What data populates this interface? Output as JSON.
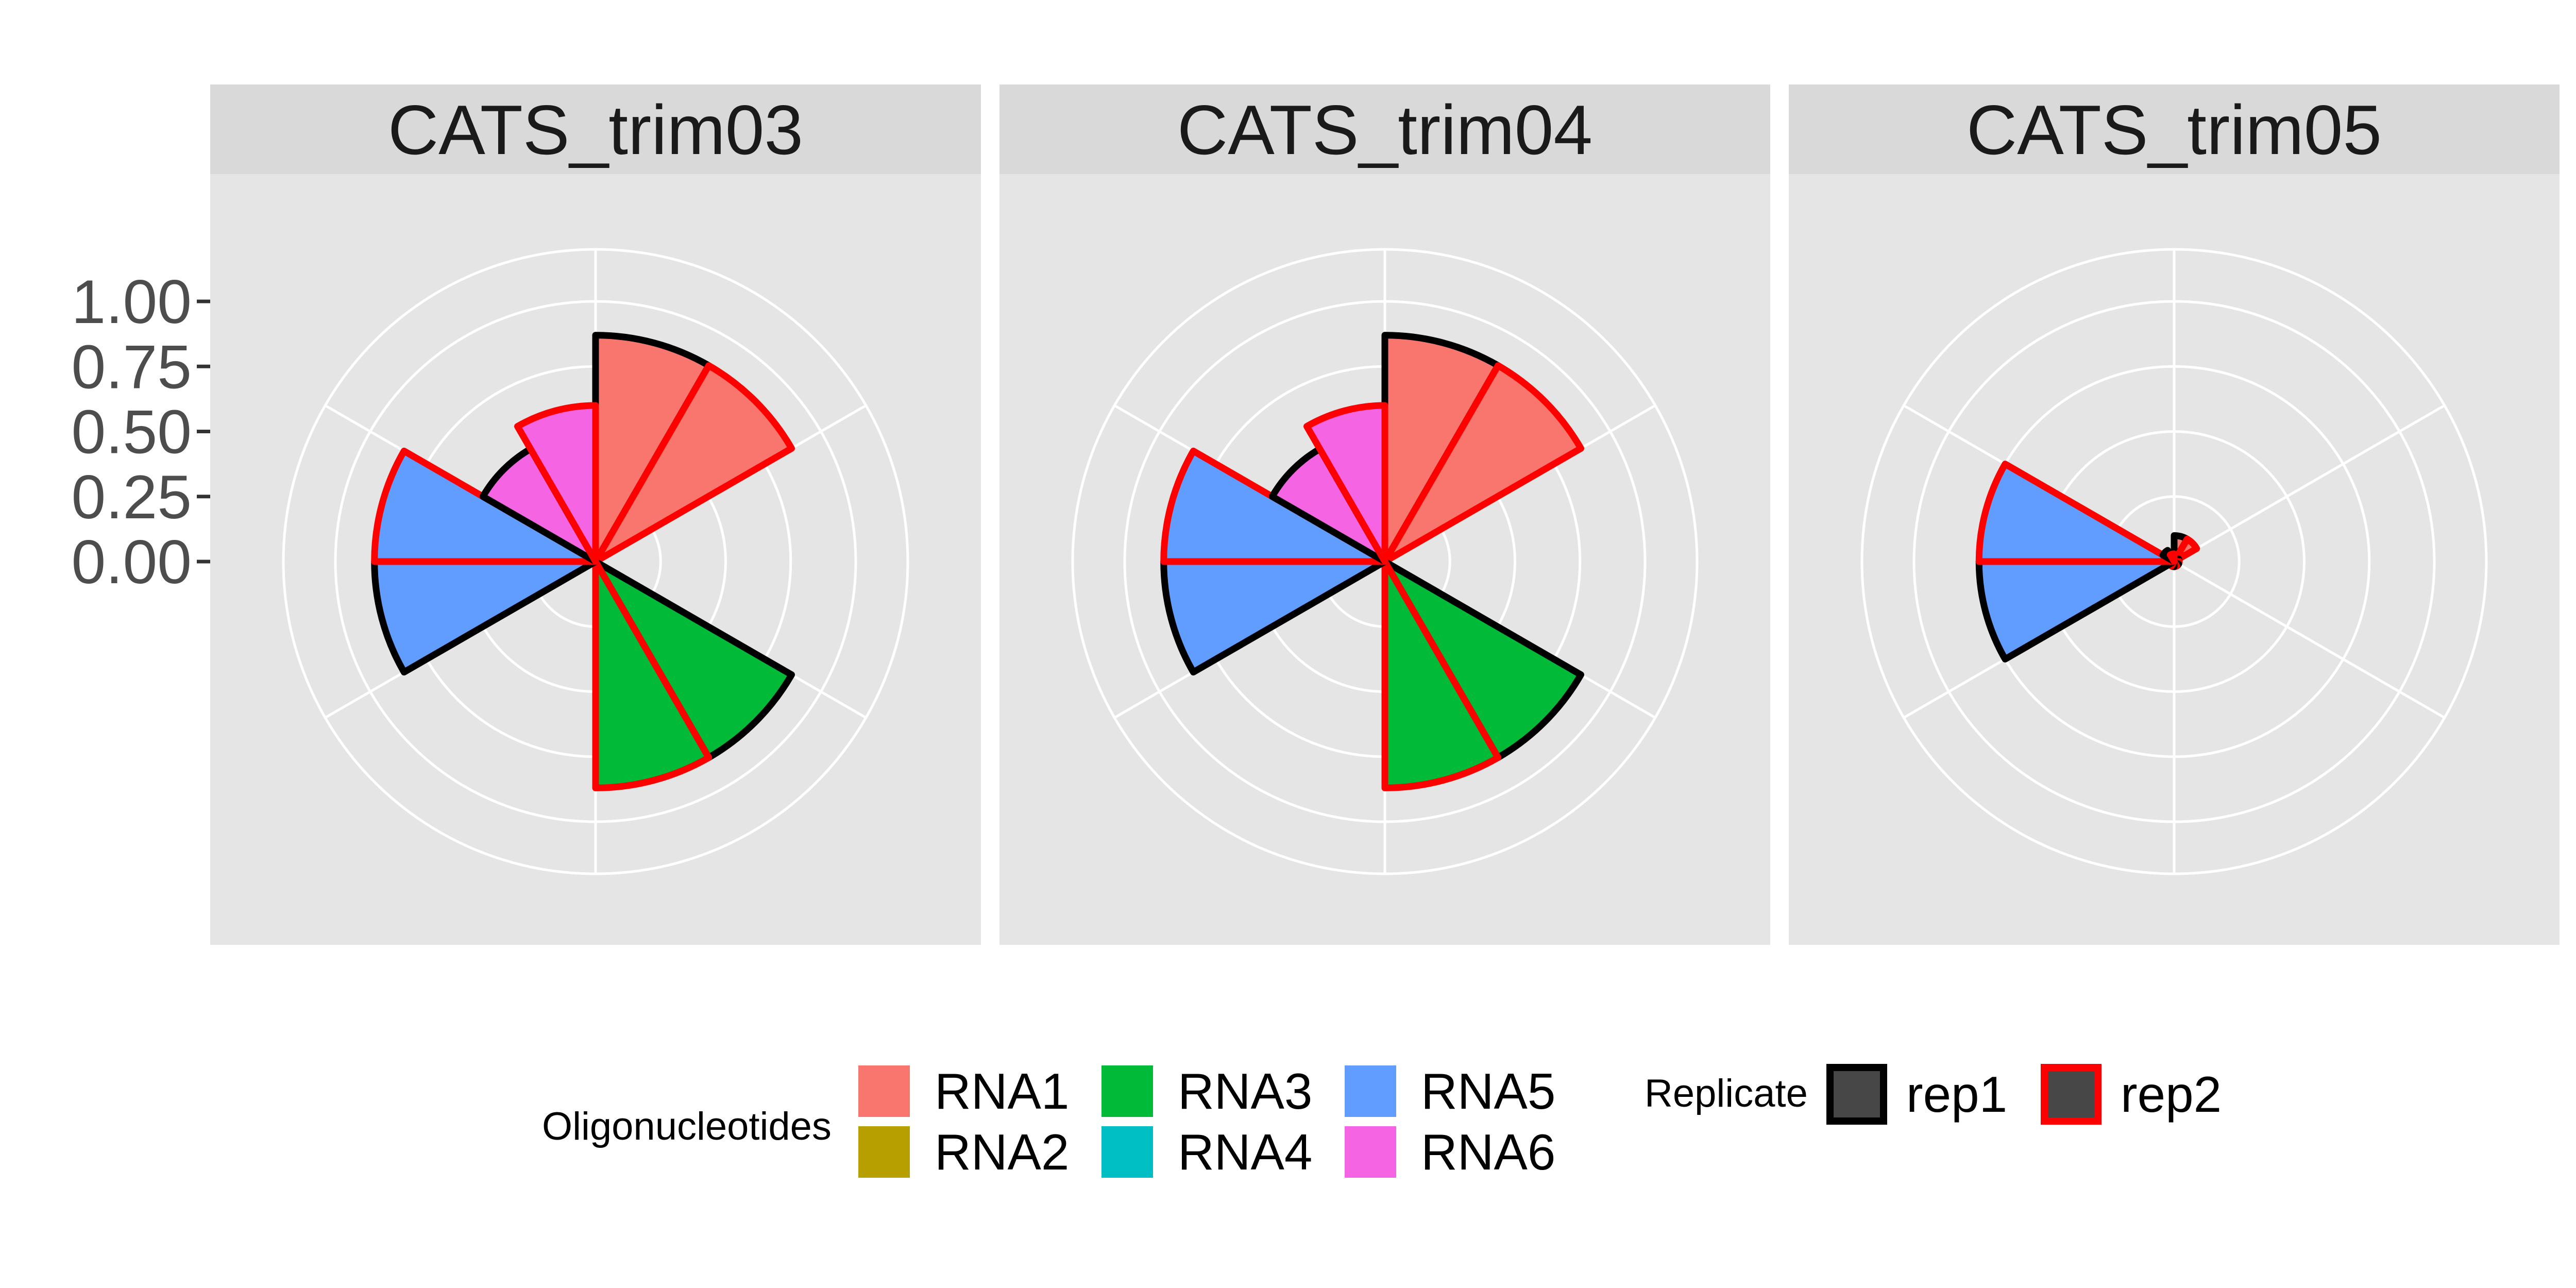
{
  "chart_data": {
    "type": "polar-bar",
    "facets": [
      {
        "name": "CATS_trim03",
        "bars": [
          {
            "oligo": "RNA1",
            "replicate": "rep1",
            "value": 0.87
          },
          {
            "oligo": "RNA1",
            "replicate": "rep2",
            "value": 0.87
          },
          {
            "oligo": "RNA2",
            "replicate": "rep1",
            "value": 0
          },
          {
            "oligo": "RNA2",
            "replicate": "rep2",
            "value": 0
          },
          {
            "oligo": "RNA3",
            "replicate": "rep1",
            "value": 0.87
          },
          {
            "oligo": "RNA3",
            "replicate": "rep2",
            "value": 0.87
          },
          {
            "oligo": "RNA4",
            "replicate": "rep1",
            "value": 0
          },
          {
            "oligo": "RNA4",
            "replicate": "rep2",
            "value": 0
          },
          {
            "oligo": "RNA5",
            "replicate": "rep1",
            "value": 0.85
          },
          {
            "oligo": "RNA5",
            "replicate": "rep2",
            "value": 0.85
          },
          {
            "oligo": "RNA6",
            "replicate": "rep1",
            "value": 0.5
          },
          {
            "oligo": "RNA6",
            "replicate": "rep2",
            "value": 0.6
          }
        ]
      },
      {
        "name": "CATS_trim04",
        "bars": [
          {
            "oligo": "RNA1",
            "replicate": "rep1",
            "value": 0.87
          },
          {
            "oligo": "RNA1",
            "replicate": "rep2",
            "value": 0.87
          },
          {
            "oligo": "RNA2",
            "replicate": "rep1",
            "value": 0
          },
          {
            "oligo": "RNA2",
            "replicate": "rep2",
            "value": 0
          },
          {
            "oligo": "RNA3",
            "replicate": "rep1",
            "value": 0.87
          },
          {
            "oligo": "RNA3",
            "replicate": "rep2",
            "value": 0.87
          },
          {
            "oligo": "RNA4",
            "replicate": "rep1",
            "value": 0
          },
          {
            "oligo": "RNA4",
            "replicate": "rep2",
            "value": 0
          },
          {
            "oligo": "RNA5",
            "replicate": "rep1",
            "value": 0.85
          },
          {
            "oligo": "RNA5",
            "replicate": "rep2",
            "value": 0.85
          },
          {
            "oligo": "RNA6",
            "replicate": "rep1",
            "value": 0.5
          },
          {
            "oligo": "RNA6",
            "replicate": "rep2",
            "value": 0.6
          }
        ]
      },
      {
        "name": "CATS_trim05",
        "bars": [
          {
            "oligo": "RNA1",
            "replicate": "rep1",
            "value": 0.1
          },
          {
            "oligo": "RNA1",
            "replicate": "rep2",
            "value": 0.1
          },
          {
            "oligo": "RNA2",
            "replicate": "rep1",
            "value": 0.02
          },
          {
            "oligo": "RNA2",
            "replicate": "rep2",
            "value": 0.02
          },
          {
            "oligo": "RNA3",
            "replicate": "rep1",
            "value": 0.02
          },
          {
            "oligo": "RNA3",
            "replicate": "rep2",
            "value": 0.02
          },
          {
            "oligo": "RNA4",
            "replicate": "rep1",
            "value": 0.02
          },
          {
            "oligo": "RNA4",
            "replicate": "rep2",
            "value": 0.02
          },
          {
            "oligo": "RNA5",
            "replicate": "rep1",
            "value": 0.75
          },
          {
            "oligo": "RNA5",
            "replicate": "rep2",
            "value": 0.75
          },
          {
            "oligo": "RNA6",
            "replicate": "rep1",
            "value": 0.05
          },
          {
            "oligo": "RNA6",
            "replicate": "rep2",
            "value": 0.03
          }
        ]
      }
    ],
    "y_ticks": [
      "1.00",
      "0.75",
      "0.50",
      "0.25",
      "0.00"
    ],
    "y_tick_values": [
      1.0,
      0.75,
      0.5,
      0.25,
      0.0
    ],
    "ylim": [
      0,
      1.2
    ],
    "fill_legend": {
      "title": "Oligonucleotides",
      "items": [
        {
          "label": "RNA1",
          "color": "#F8766D"
        },
        {
          "label": "RNA2",
          "color": "#B79F00"
        },
        {
          "label": "RNA3",
          "color": "#00BA38"
        },
        {
          "label": "RNA4",
          "color": "#00BFC4"
        },
        {
          "label": "RNA5",
          "color": "#619CFF"
        },
        {
          "label": "RNA6",
          "color": "#F564E3"
        }
      ]
    },
    "outline_legend": {
      "title": "Replicate",
      "items": [
        {
          "label": "rep1",
          "color": "#000000"
        },
        {
          "label": "rep2",
          "color": "#FF0000"
        }
      ]
    },
    "grid": true,
    "legend_position": "bottom",
    "panel_background": "#E5E5E5",
    "strip_background": "#D9D9D9"
  }
}
